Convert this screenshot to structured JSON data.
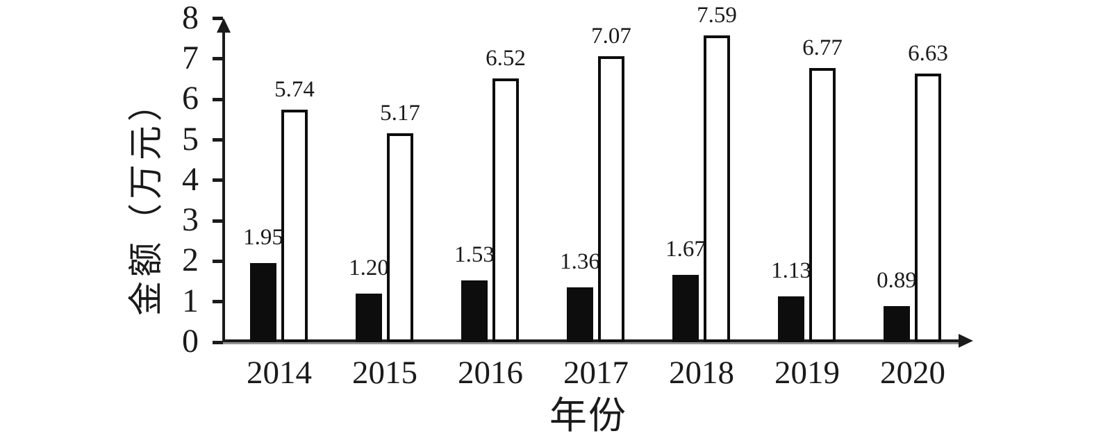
{
  "chart_data": {
    "type": "bar",
    "title": "",
    "xlabel": "年份",
    "ylabel": "金额（万元）",
    "categories": [
      "2014",
      "2015",
      "2016",
      "2017",
      "2018",
      "2019",
      "2020"
    ],
    "series": [
      {
        "name": "series-black",
        "fill": "#0d0d0d",
        "values": [
          1.95,
          1.2,
          1.53,
          1.36,
          1.67,
          1.13,
          0.89
        ],
        "labels": [
          "1.95",
          "1.20",
          "1.53",
          "1.36",
          "1.67",
          "1.13",
          "0.89"
        ]
      },
      {
        "name": "series-white",
        "fill": "#ffffff",
        "stroke": "#0d0d0d",
        "values": [
          5.74,
          5.17,
          6.52,
          7.07,
          7.59,
          6.77,
          6.63
        ],
        "labels": [
          "5.74",
          "5.17",
          "6.52",
          "7.07",
          "7.59",
          "6.77",
          "6.63"
        ]
      }
    ],
    "y_ticks": [
      "0",
      "1",
      "2",
      "3",
      "4",
      "5",
      "6",
      "7",
      "8"
    ],
    "ylim": [
      0,
      8
    ],
    "grid": false,
    "legend": "none",
    "axis_color": "#1b1b1b",
    "background_color": "#ffffff"
  }
}
